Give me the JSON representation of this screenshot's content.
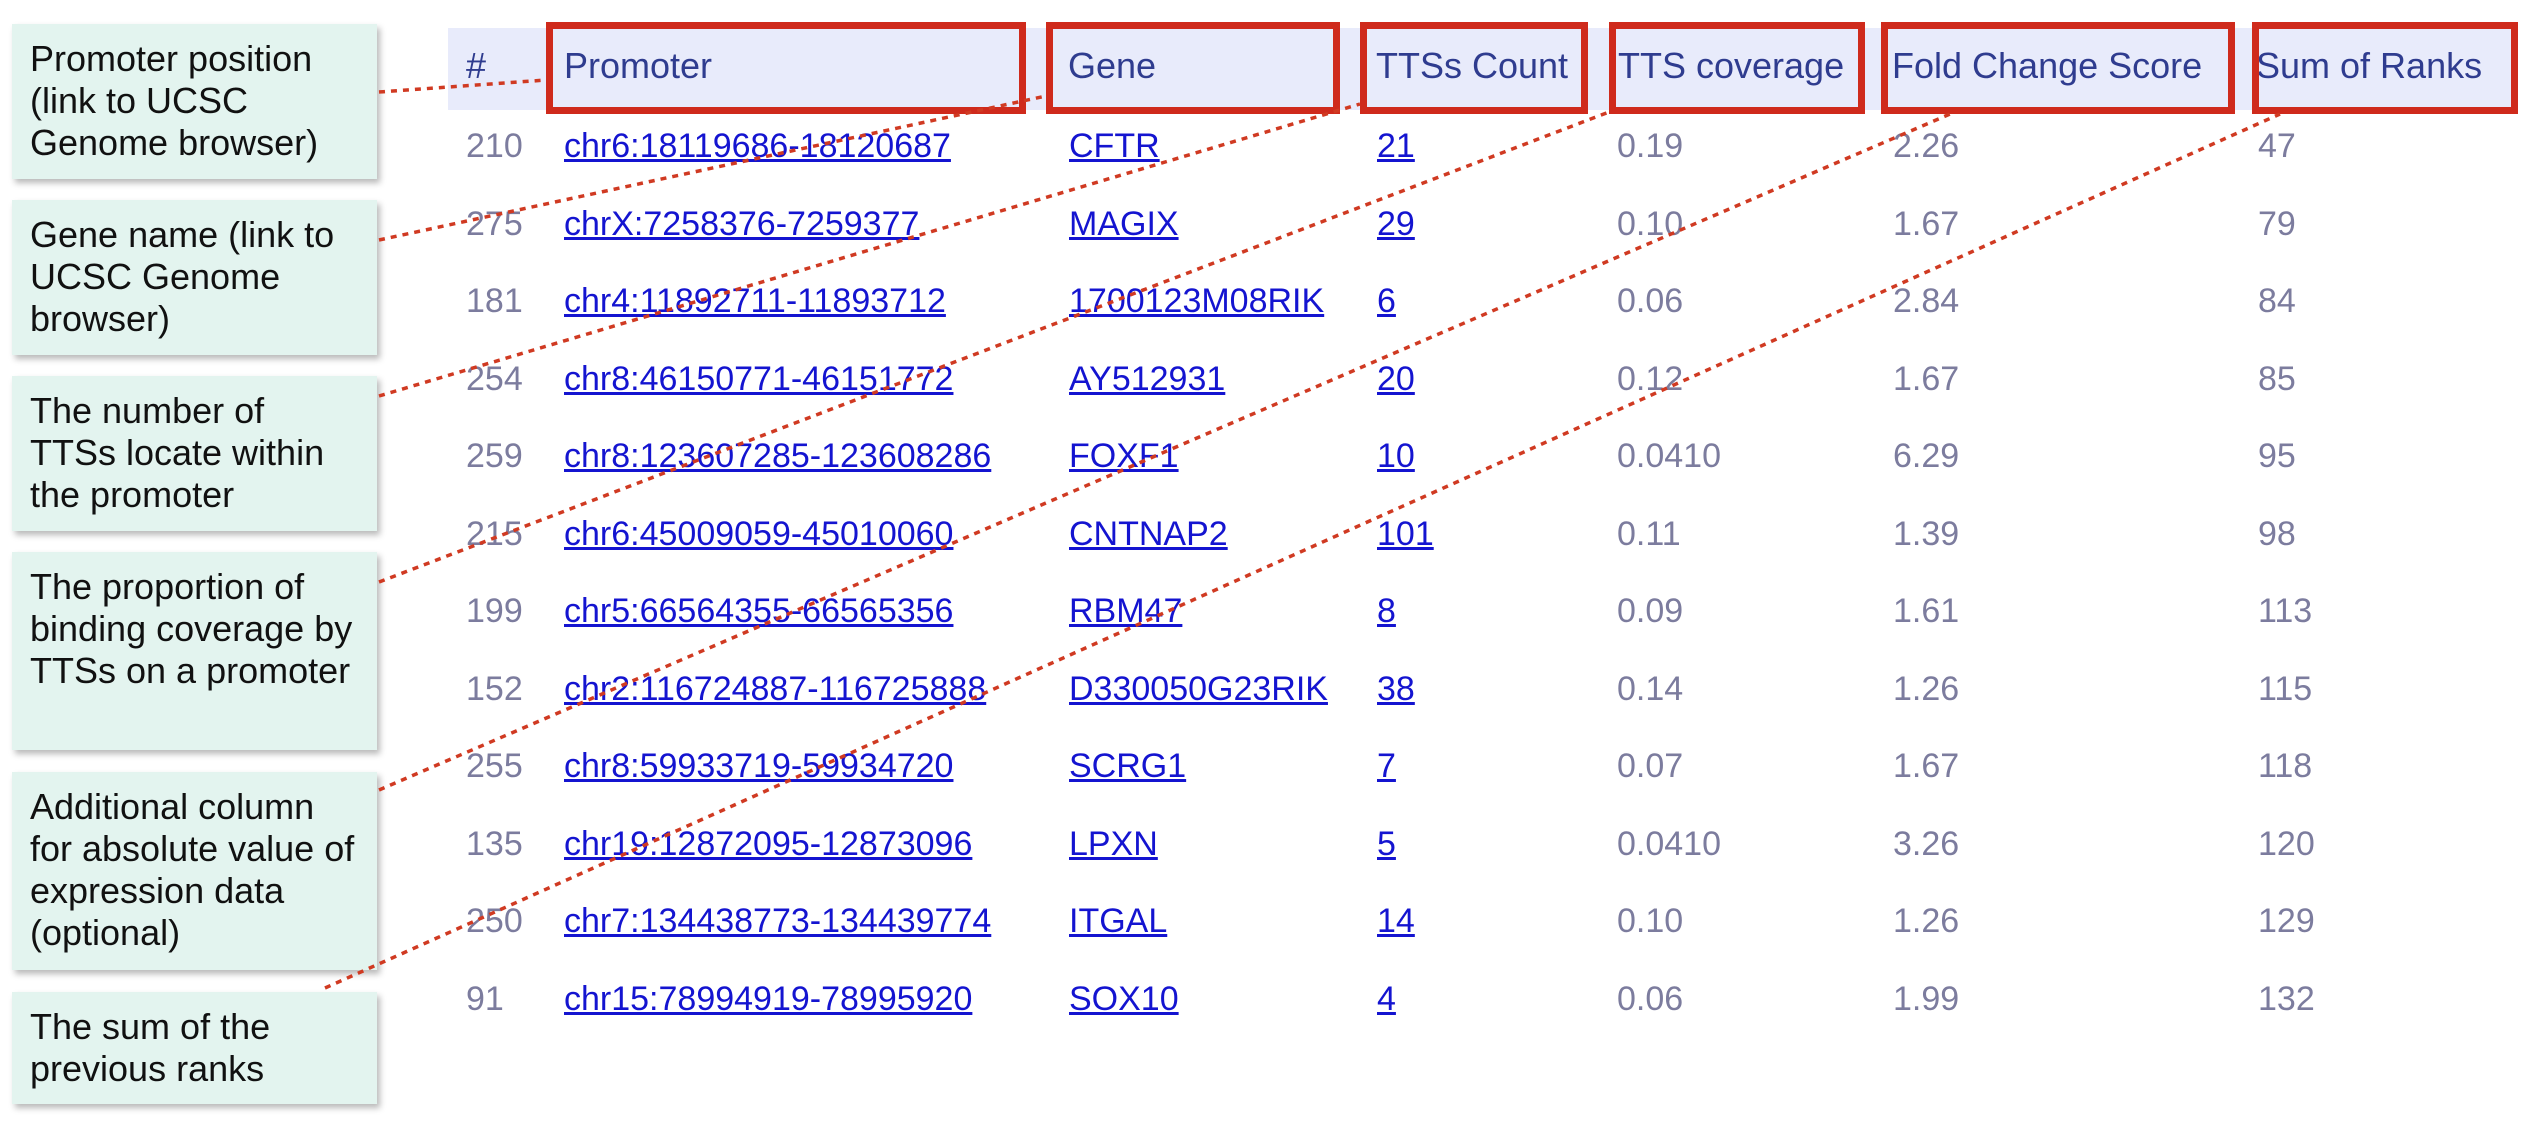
{
  "callouts": [
    "Promoter position (link to UCSC Genome browser)",
    "Gene name (link to UCSC Genome browser)",
    "The number of TTSs locate within the promoter",
    "The proportion of binding coverage by TTSs on a promoter",
    "Additional column for absolute value of expression data (optional)",
    "The sum of the previous ranks"
  ],
  "table": {
    "headers": [
      "#",
      "Promoter",
      "Gene",
      "TTSs Count",
      "TTS coverage",
      "Fold Change Score",
      "Sum of Ranks"
    ],
    "rows": [
      [
        "210",
        "chr6:18119686-18120687",
        "CFTR",
        "21",
        "0.19",
        "2.26",
        "47"
      ],
      [
        "275",
        "chrX:7258376-7259377",
        "MAGIX",
        "29",
        "0.10",
        "1.67",
        "79"
      ],
      [
        "181",
        "chr4:11892711-11893712",
        "1700123M08RIK",
        "6",
        "0.06",
        "2.84",
        "84"
      ],
      [
        "254",
        "chr8:46150771-46151772",
        "AY512931",
        "20",
        "0.12",
        "1.67",
        "85"
      ],
      [
        "259",
        "chr8:123607285-123608286",
        "FOXF1",
        "10",
        "0.0410",
        "6.29",
        "95"
      ],
      [
        "215",
        "chr6:45009059-45010060",
        "CNTNAP2",
        "101",
        "0.11",
        "1.39",
        "98"
      ],
      [
        "199",
        "chr5:66564355-66565356",
        "RBM47",
        "8",
        "0.09",
        "1.61",
        "113"
      ],
      [
        "152",
        "chr2:116724887-116725888",
        "D330050G23RIK",
        "38",
        "0.14",
        "1.26",
        "115"
      ],
      [
        "255",
        "chr8:59933719-59934720",
        "SCRG1",
        "7",
        "0.07",
        "1.67",
        "118"
      ],
      [
        "135",
        "chr19:12872095-12873096",
        "LPXN",
        "5",
        "0.0410",
        "3.26",
        "120"
      ],
      [
        "250",
        "chr7:134438773-134439774",
        "ITGAL",
        "14",
        "0.10",
        "1.26",
        "129"
      ],
      [
        "91",
        "chr15:78994919-78995920",
        "SOX10",
        "4",
        "0.06",
        "1.99",
        "132"
      ]
    ]
  },
  "colors": {
    "highlight_border": "#cf2a1c",
    "leader_line": "#d03a22",
    "callout_fill": "#e3f4ef",
    "header_fill": "#e8ebfb",
    "header_text": "#2f3c8f",
    "link_text": "#1414d0",
    "plain_text": "#7c7c9e"
  }
}
